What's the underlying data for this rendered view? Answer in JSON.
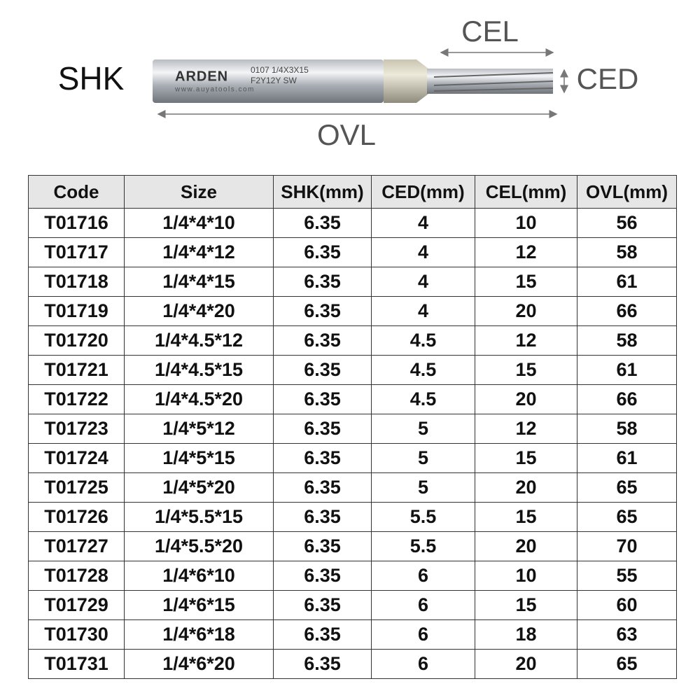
{
  "diagram": {
    "labels": {
      "shk": "SHK",
      "cel": "CEL",
      "ced": "CED",
      "ovl": "OVL"
    },
    "engraving": {
      "brand": "ARDEN",
      "spec": "0107 1/4X3X15",
      "code": "F2Y12Y SW",
      "url": "www.auyatools.com"
    }
  },
  "table": {
    "header": [
      "Code",
      "Size",
      "SHK(mm)",
      "CED(mm)",
      "CEL(mm)",
      "OVL(mm)"
    ],
    "rows": [
      [
        "T01716",
        "1/4*4*10",
        "6.35",
        "4",
        "10",
        "56"
      ],
      [
        "T01717",
        "1/4*4*12",
        "6.35",
        "4",
        "12",
        "58"
      ],
      [
        "T01718",
        "1/4*4*15",
        "6.35",
        "4",
        "15",
        "61"
      ],
      [
        "T01719",
        "1/4*4*20",
        "6.35",
        "4",
        "20",
        "66"
      ],
      [
        "T01720",
        "1/4*4.5*12",
        "6.35",
        "4.5",
        "12",
        "58"
      ],
      [
        "T01721",
        "1/4*4.5*15",
        "6.35",
        "4.5",
        "15",
        "61"
      ],
      [
        "T01722",
        "1/4*4.5*20",
        "6.35",
        "4.5",
        "20",
        "66"
      ],
      [
        "T01723",
        "1/4*5*12",
        "6.35",
        "5",
        "12",
        "58"
      ],
      [
        "T01724",
        "1/4*5*15",
        "6.35",
        "5",
        "15",
        "61"
      ],
      [
        "T01725",
        "1/4*5*20",
        "6.35",
        "5",
        "20",
        "65"
      ],
      [
        "T01726",
        "1/4*5.5*15",
        "6.35",
        "5.5",
        "15",
        "65"
      ],
      [
        "T01727",
        "1/4*5.5*20",
        "6.35",
        "5.5",
        "20",
        "70"
      ],
      [
        "T01728",
        "1/4*6*10",
        "6.35",
        "6",
        "10",
        "55"
      ],
      [
        "T01729",
        "1/4*6*15",
        "6.35",
        "6",
        "15",
        "60"
      ],
      [
        "T01730",
        "1/4*6*18",
        "6.35",
        "6",
        "18",
        "63"
      ],
      [
        "T01731",
        "1/4*6*20",
        "6.35",
        "6",
        "20",
        "65"
      ]
    ]
  }
}
